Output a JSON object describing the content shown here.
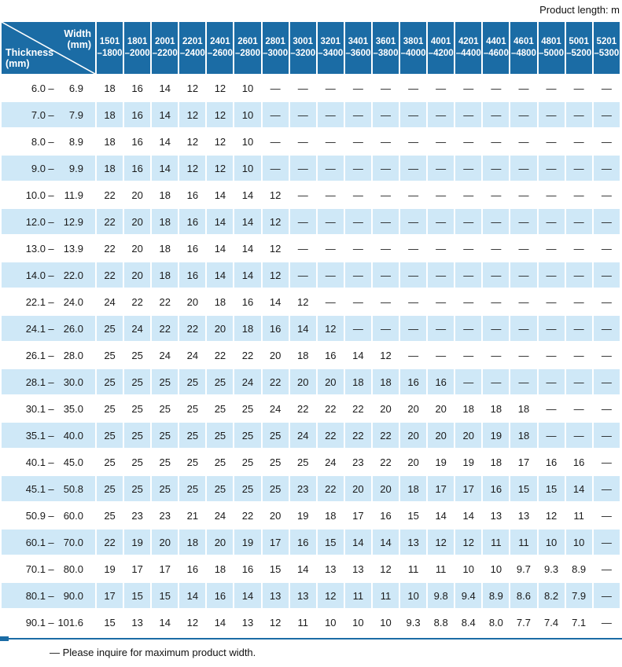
{
  "page": {
    "product_length_label": "Product length: m",
    "footnote": "— Please inquire for maximum product width."
  },
  "colors": {
    "header_blue": "#1b6ca5",
    "row_alt_blue": "#cfe8f7",
    "text_dark": "#1a1a1a"
  },
  "table": {
    "range_separator": "–",
    "corner": {
      "width_label": "Width",
      "width_unit": "(mm)",
      "thickness_label": "Thickness",
      "thickness_unit": "(mm)"
    },
    "width_columns": [
      {
        "from": "1501",
        "to": "–1800"
      },
      {
        "from": "1801",
        "to": "–2000"
      },
      {
        "from": "2001",
        "to": "–2200"
      },
      {
        "from": "2201",
        "to": "–2400"
      },
      {
        "from": "2401",
        "to": "–2600"
      },
      {
        "from": "2601",
        "to": "–2800"
      },
      {
        "from": "2801",
        "to": "–3000"
      },
      {
        "from": "3001",
        "to": "–3200"
      },
      {
        "from": "3201",
        "to": "–3400"
      },
      {
        "from": "3401",
        "to": "–3600"
      },
      {
        "from": "3601",
        "to": "–3800"
      },
      {
        "from": "3801",
        "to": "–4000"
      },
      {
        "from": "4001",
        "to": "–4200"
      },
      {
        "from": "4201",
        "to": "–4400"
      },
      {
        "from": "4401",
        "to": "–4600"
      },
      {
        "from": "4601",
        "to": "–4800"
      },
      {
        "from": "4801",
        "to": "–5000"
      },
      {
        "from": "5001",
        "to": "–5200"
      },
      {
        "from": "5201",
        "to": "–5300"
      }
    ],
    "rows": [
      {
        "min": "6.0",
        "max": "6.9",
        "values": [
          "18",
          "16",
          "14",
          "12",
          "12",
          "10",
          "—",
          "—",
          "—",
          "—",
          "—",
          "—",
          "—",
          "—",
          "—",
          "—",
          "—",
          "—",
          "—"
        ]
      },
      {
        "min": "7.0",
        "max": "7.9",
        "values": [
          "18",
          "16",
          "14",
          "12",
          "12",
          "10",
          "—",
          "—",
          "—",
          "—",
          "—",
          "—",
          "—",
          "—",
          "—",
          "—",
          "—",
          "—",
          "—"
        ]
      },
      {
        "min": "8.0",
        "max": "8.9",
        "values": [
          "18",
          "16",
          "14",
          "12",
          "12",
          "10",
          "—",
          "—",
          "—",
          "—",
          "—",
          "—",
          "—",
          "—",
          "—",
          "—",
          "—",
          "—",
          "—"
        ]
      },
      {
        "min": "9.0",
        "max": "9.9",
        "values": [
          "18",
          "16",
          "14",
          "12",
          "12",
          "10",
          "—",
          "—",
          "—",
          "—",
          "—",
          "—",
          "—",
          "—",
          "—",
          "—",
          "—",
          "—",
          "—"
        ]
      },
      {
        "min": "10.0",
        "max": "11.9",
        "values": [
          "22",
          "20",
          "18",
          "16",
          "14",
          "14",
          "12",
          "—",
          "—",
          "—",
          "—",
          "—",
          "—",
          "—",
          "—",
          "—",
          "—",
          "—",
          "—"
        ]
      },
      {
        "min": "12.0",
        "max": "12.9",
        "values": [
          "22",
          "20",
          "18",
          "16",
          "14",
          "14",
          "12",
          "—",
          "—",
          "—",
          "—",
          "—",
          "—",
          "—",
          "—",
          "—",
          "—",
          "—",
          "—"
        ]
      },
      {
        "min": "13.0",
        "max": "13.9",
        "values": [
          "22",
          "20",
          "18",
          "16",
          "14",
          "14",
          "12",
          "—",
          "—",
          "—",
          "—",
          "—",
          "—",
          "—",
          "—",
          "—",
          "—",
          "—",
          "—"
        ]
      },
      {
        "min": "14.0",
        "max": "22.0",
        "values": [
          "22",
          "20",
          "18",
          "16",
          "14",
          "14",
          "12",
          "—",
          "—",
          "—",
          "—",
          "—",
          "—",
          "—",
          "—",
          "—",
          "—",
          "—",
          "—"
        ]
      },
      {
        "min": "22.1",
        "max": "24.0",
        "values": [
          "24",
          "22",
          "22",
          "20",
          "18",
          "16",
          "14",
          "12",
          "—",
          "—",
          "—",
          "—",
          "—",
          "—",
          "—",
          "—",
          "—",
          "—",
          "—"
        ]
      },
      {
        "min": "24.1",
        "max": "26.0",
        "values": [
          "25",
          "24",
          "22",
          "22",
          "20",
          "18",
          "16",
          "14",
          "12",
          "—",
          "—",
          "—",
          "—",
          "—",
          "—",
          "—",
          "—",
          "—",
          "—"
        ]
      },
      {
        "min": "26.1",
        "max": "28.0",
        "values": [
          "25",
          "25",
          "24",
          "24",
          "22",
          "22",
          "20",
          "18",
          "16",
          "14",
          "12",
          "—",
          "—",
          "—",
          "—",
          "—",
          "—",
          "—",
          "—"
        ]
      },
      {
        "min": "28.1",
        "max": "30.0",
        "values": [
          "25",
          "25",
          "25",
          "25",
          "25",
          "24",
          "22",
          "20",
          "20",
          "18",
          "18",
          "16",
          "16",
          "—",
          "—",
          "—",
          "—",
          "—",
          "—"
        ]
      },
      {
        "min": "30.1",
        "max": "35.0",
        "values": [
          "25",
          "25",
          "25",
          "25",
          "25",
          "25",
          "24",
          "22",
          "22",
          "22",
          "20",
          "20",
          "20",
          "18",
          "18",
          "18",
          "—",
          "—",
          "—"
        ]
      },
      {
        "min": "35.1",
        "max": "40.0",
        "values": [
          "25",
          "25",
          "25",
          "25",
          "25",
          "25",
          "25",
          "24",
          "22",
          "22",
          "22",
          "20",
          "20",
          "20",
          "19",
          "18",
          "—",
          "—",
          "—"
        ]
      },
      {
        "min": "40.1",
        "max": "45.0",
        "values": [
          "25",
          "25",
          "25",
          "25",
          "25",
          "25",
          "25",
          "25",
          "24",
          "23",
          "22",
          "20",
          "19",
          "19",
          "18",
          "17",
          "16",
          "16",
          "—"
        ]
      },
      {
        "min": "45.1",
        "max": "50.8",
        "values": [
          "25",
          "25",
          "25",
          "25",
          "25",
          "25",
          "25",
          "23",
          "22",
          "20",
          "20",
          "18",
          "17",
          "17",
          "16",
          "15",
          "15",
          "14",
          "—"
        ]
      },
      {
        "min": "50.9",
        "max": "60.0",
        "values": [
          "25",
          "23",
          "23",
          "21",
          "24",
          "22",
          "20",
          "19",
          "18",
          "17",
          "16",
          "15",
          "14",
          "14",
          "13",
          "13",
          "12",
          "11",
          "—"
        ]
      },
      {
        "min": "60.1",
        "max": "70.0",
        "values": [
          "22",
          "19",
          "20",
          "18",
          "20",
          "19",
          "17",
          "16",
          "15",
          "14",
          "14",
          "13",
          "12",
          "12",
          "11",
          "11",
          "10",
          "10",
          "—"
        ]
      },
      {
        "min": "70.1",
        "max": "80.0",
        "values": [
          "19",
          "17",
          "17",
          "16",
          "18",
          "16",
          "15",
          "14",
          "13",
          "13",
          "12",
          "11",
          "11",
          "10",
          "10",
          "9.7",
          "9.3",
          "8.9",
          "—"
        ]
      },
      {
        "min": "80.1",
        "max": "90.0",
        "values": [
          "17",
          "15",
          "15",
          "14",
          "16",
          "14",
          "13",
          "13",
          "12",
          "11",
          "11",
          "10",
          "9.8",
          "9.4",
          "8.9",
          "8.6",
          "8.2",
          "7.9",
          "—"
        ]
      },
      {
        "min": "90.1",
        "max": "101.6",
        "values": [
          "15",
          "13",
          "14",
          "12",
          "14",
          "13",
          "12",
          "11",
          "10",
          "10",
          "10",
          "9.3",
          "8.8",
          "8.4",
          "8.0",
          "7.7",
          "7.4",
          "7.1",
          "—"
        ]
      }
    ]
  }
}
